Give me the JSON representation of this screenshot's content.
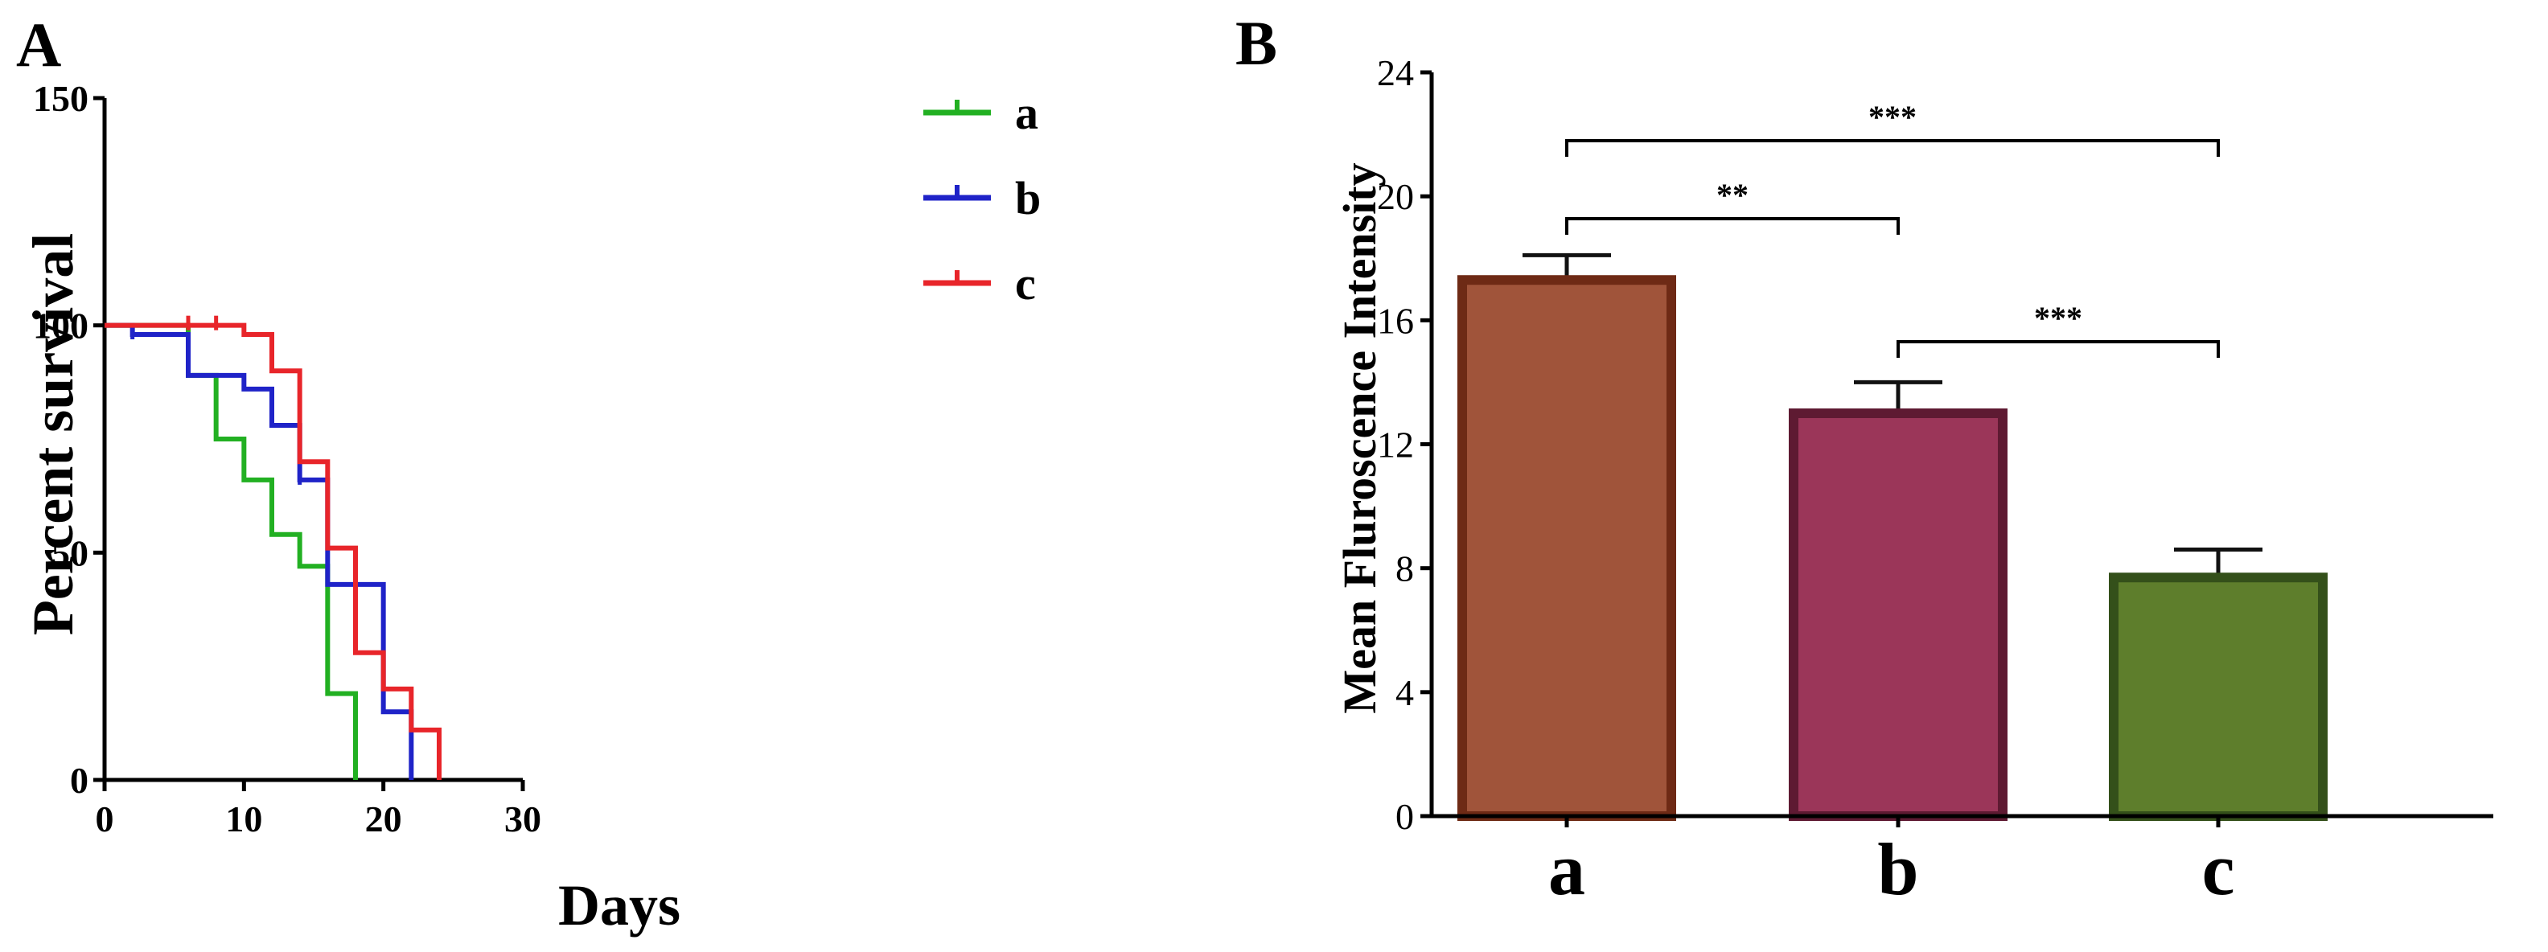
{
  "panels": {
    "A": "A",
    "B": "B"
  },
  "chart_data": [
    {
      "type": "line",
      "subtype": "kaplan-meier survival (step)",
      "panel": "A",
      "xlabel": "Days",
      "ylabel": "Percent survival",
      "xlim": [
        0,
        30
      ],
      "ylim": [
        0,
        150
      ],
      "xticks": [
        "0",
        "10",
        "20",
        "30"
      ],
      "yticks": [
        "0",
        "50",
        "100",
        "150"
      ],
      "legend_position": "top-right",
      "series": [
        {
          "name": "a",
          "color": "#22b022",
          "x": [
            0,
            6,
            8,
            10,
            12,
            14,
            16,
            18
          ],
          "y": [
            100,
            89,
            75,
            66,
            54,
            47,
            19,
            0
          ]
        },
        {
          "name": "b",
          "color": "#1f23c8",
          "x": [
            0,
            2,
            6,
            10,
            12,
            14,
            16,
            20,
            22
          ],
          "y": [
            100,
            98,
            89,
            86,
            78,
            66,
            43,
            15,
            0
          ],
          "censored_x": [
            2,
            14
          ]
        },
        {
          "name": "c",
          "color": "#e8252a",
          "x": [
            0,
            10,
            12,
            14,
            15,
            16,
            18,
            20,
            22,
            24
          ],
          "y": [
            100,
            98,
            90,
            70,
            70,
            51,
            28,
            20,
            11,
            0
          ],
          "censored_x": [
            6,
            8
          ]
        }
      ]
    },
    {
      "type": "bar",
      "panel": "B",
      "ylabel": "Mean Fluroscence Intensity",
      "categories": [
        "a",
        "b",
        "c"
      ],
      "values": [
        17.3,
        13.0,
        7.7
      ],
      "errors": [
        0.8,
        1.0,
        0.9
      ],
      "fill_colors": [
        "#a0543a",
        "#9b3659",
        "#5e7e2c"
      ],
      "edge_colors": [
        "#6e2a15",
        "#5e1a32",
        "#34501a"
      ],
      "ylim": [
        0,
        24
      ],
      "yticks": [
        "0",
        "4",
        "8",
        "12",
        "16",
        "20",
        "24"
      ],
      "significance": [
        {
          "from": "a",
          "to": "c",
          "label": "***"
        },
        {
          "from": "a",
          "to": "b",
          "label": "**"
        },
        {
          "from": "b",
          "to": "c",
          "label": "***"
        }
      ]
    }
  ]
}
